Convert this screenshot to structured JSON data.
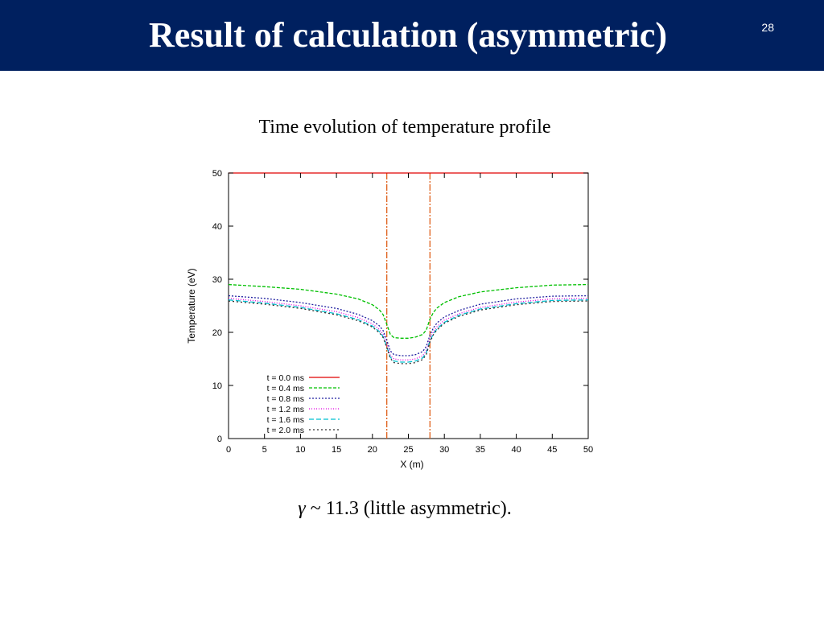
{
  "slide": {
    "title": "Result of calculation (asymmetric)",
    "page_number": "28",
    "subtitle": "Time evolution of temperature profile",
    "caption_symbol": "γ",
    "caption_text": " ~ 11.3 (little asymmetric).",
    "header_color": "#00205f"
  },
  "chart_data": {
    "type": "line",
    "title": "",
    "xlabel": "X (m)",
    "ylabel": "Temperature (eV)",
    "xlim": [
      0,
      50
    ],
    "ylim": [
      0,
      50
    ],
    "xticks": [
      0,
      5,
      10,
      15,
      20,
      25,
      30,
      35,
      40,
      45,
      50
    ],
    "yticks": [
      0,
      10,
      20,
      30,
      40,
      50
    ],
    "grid": false,
    "legend_position": "bottom-left",
    "vertical_lines": [
      {
        "x": 22,
        "color": "#e0601a",
        "style": "dash-dot"
      },
      {
        "x": 28,
        "color": "#e0601a",
        "style": "dash-dot"
      }
    ],
    "series": [
      {
        "name": "t = 0.0 ms",
        "color": "#e00000",
        "dash": "",
        "x": [
          0,
          50
        ],
        "y": [
          50,
          50
        ]
      },
      {
        "name": "t = 0.4 ms",
        "color": "#00c000",
        "dash": "4,2",
        "x": [
          0,
          5,
          10,
          15,
          18,
          20,
          21,
          21.5,
          22,
          22.5,
          23,
          24,
          25,
          26,
          27,
          27.5,
          28,
          28.5,
          29,
          30,
          32,
          35,
          40,
          45,
          50
        ],
        "y": [
          29,
          28.6,
          28.1,
          27.2,
          26.3,
          25.2,
          24.2,
          23.3,
          21.5,
          19.6,
          19,
          18.9,
          18.9,
          19.1,
          19.6,
          20.5,
          22.5,
          23.8,
          24.6,
          25.6,
          26.7,
          27.6,
          28.4,
          28.9,
          29
        ]
      },
      {
        "name": "t = 0.8 ms",
        "color": "#2020a0",
        "dash": "2,2",
        "x": [
          0,
          5,
          10,
          15,
          18,
          20,
          21,
          21.5,
          22,
          22.5,
          23,
          24,
          25,
          26,
          27,
          27.5,
          28,
          28.5,
          29,
          30,
          32,
          35,
          40,
          45,
          50
        ],
        "y": [
          26.9,
          26.4,
          25.6,
          24.5,
          23.4,
          22.2,
          21.2,
          20.3,
          18.5,
          16.5,
          15.8,
          15.6,
          15.6,
          15.8,
          16.4,
          17.4,
          19.5,
          20.9,
          21.8,
          22.9,
          24.1,
          25.3,
          26.3,
          26.8,
          26.9
        ]
      },
      {
        "name": "t = 1.2 ms",
        "color": "#e000e0",
        "dash": "1,2",
        "x": [
          0,
          5,
          10,
          15,
          18,
          20,
          21,
          21.5,
          22,
          22.5,
          23,
          24,
          25,
          26,
          27,
          27.5,
          28,
          28.5,
          29,
          30,
          32,
          35,
          40,
          45,
          50
        ],
        "y": [
          26.4,
          25.8,
          25,
          23.9,
          22.8,
          21.6,
          20.5,
          19.6,
          17.7,
          15.7,
          15,
          14.8,
          14.8,
          15,
          15.6,
          16.6,
          18.8,
          20.2,
          21.1,
          22.3,
          23.5,
          24.7,
          25.7,
          26.3,
          26.4
        ]
      },
      {
        "name": "t = 1.6 ms",
        "color": "#00c0d0",
        "dash": "6,3",
        "x": [
          0,
          5,
          10,
          15,
          18,
          20,
          21,
          21.5,
          22,
          22.5,
          23,
          24,
          25,
          26,
          27,
          27.5,
          28,
          28.5,
          29,
          30,
          32,
          35,
          40,
          45,
          50
        ],
        "y": [
          26.1,
          25.5,
          24.7,
          23.5,
          22.4,
          21.2,
          20.1,
          19.2,
          17.3,
          15.3,
          14.6,
          14.4,
          14.4,
          14.6,
          15.2,
          16.2,
          18.4,
          19.8,
          20.7,
          21.9,
          23.2,
          24.4,
          25.4,
          26,
          26.1
        ]
      },
      {
        "name": "t = 2.0 ms",
        "color": "#303030",
        "dash": "2,3",
        "x": [
          0,
          5,
          10,
          15,
          18,
          20,
          21,
          21.5,
          22,
          22.5,
          23,
          24,
          25,
          26,
          27,
          27.5,
          28,
          28.5,
          29,
          30,
          32,
          35,
          40,
          45,
          50
        ],
        "y": [
          25.9,
          25.3,
          24.5,
          23.3,
          22.2,
          21,
          19.9,
          19,
          17.1,
          15.1,
          14.3,
          14.1,
          14.1,
          14.3,
          14.9,
          15.9,
          18.2,
          19.6,
          20.5,
          21.7,
          23,
          24.2,
          25.2,
          25.8,
          25.9
        ]
      }
    ]
  }
}
